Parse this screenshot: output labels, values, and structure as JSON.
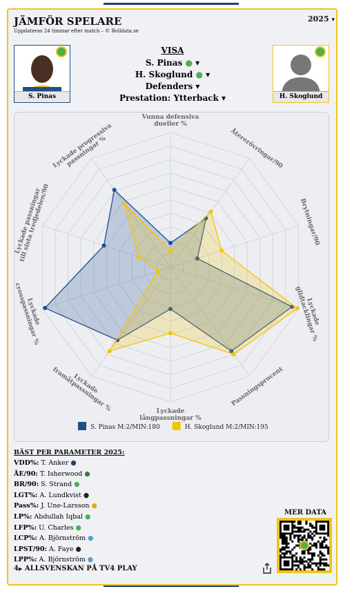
{
  "header": {
    "title": "JÄMFÖR SPELARE",
    "subtitle": "Uppdateras 24 timmar efter match – © Bolldata.se",
    "season": "2025"
  },
  "players": {
    "left": "S. Pinas",
    "right": "H. Skoglund"
  },
  "selectors": {
    "title": "VISA",
    "player1": "S. Pinas",
    "player2": "H. Skoglund",
    "position": "Defenders",
    "role": "Prestation: Ytterback"
  },
  "chart_data": {
    "type": "radar",
    "categories": [
      "Vunna defensiva\ndueller %",
      "Återerövringar/90",
      "Brytningar/90",
      "Lyckade\nglidtacklingar %",
      "Passningsprocent",
      "Lyckade\nlångpassningar %",
      "Lyckade\nframåtpassningar %",
      "Lyckade\ncrosspassningar %",
      "Lyckade passningar\ntill sista tredjedelen/90",
      "Lyckade progressiva\npassningar %"
    ],
    "ylim": [
      0,
      100
    ],
    "series": [
      {
        "name": "S. Pinas M:2/MIN:180",
        "color": "#1d4e89",
        "values": [
          18,
          45,
          21,
          95,
          77,
          31,
          67,
          98,
          52,
          71
        ]
      },
      {
        "name": "H. Skoglund M:2/MIN:195",
        "color": "#f5c400",
        "values": [
          12,
          51,
          40,
          99,
          80,
          49,
          77,
          10,
          25,
          58
        ]
      }
    ]
  },
  "best": {
    "title": "BÄST PER PARAMETER 2025:",
    "items": [
      {
        "key": "VDD%:",
        "name": "T. Anker"
      },
      {
        "key": "ÅE/90:",
        "name": "T. Isherwood"
      },
      {
        "key": "BR/90:",
        "name": "S. Strand"
      },
      {
        "key": "LGT%:",
        "name": "A. Lundkvist"
      },
      {
        "key": "Pass%:",
        "name": "J. Une-Larsson"
      },
      {
        "key": "LP%:",
        "name": "Abdullah Iqbal"
      },
      {
        "key": "LFP%:",
        "name": "U. Charles"
      },
      {
        "key": "LCP%:",
        "name": "A. Björnström"
      },
      {
        "key": "LPST/90:",
        "name": "A. Faye"
      },
      {
        "key": "LPP%:",
        "name": "A. Björnström"
      }
    ]
  },
  "more": "MER DATA",
  "footer": {
    "number": "4",
    "text": "ALLSVENSKAN PÅ TV4 PLAY"
  }
}
